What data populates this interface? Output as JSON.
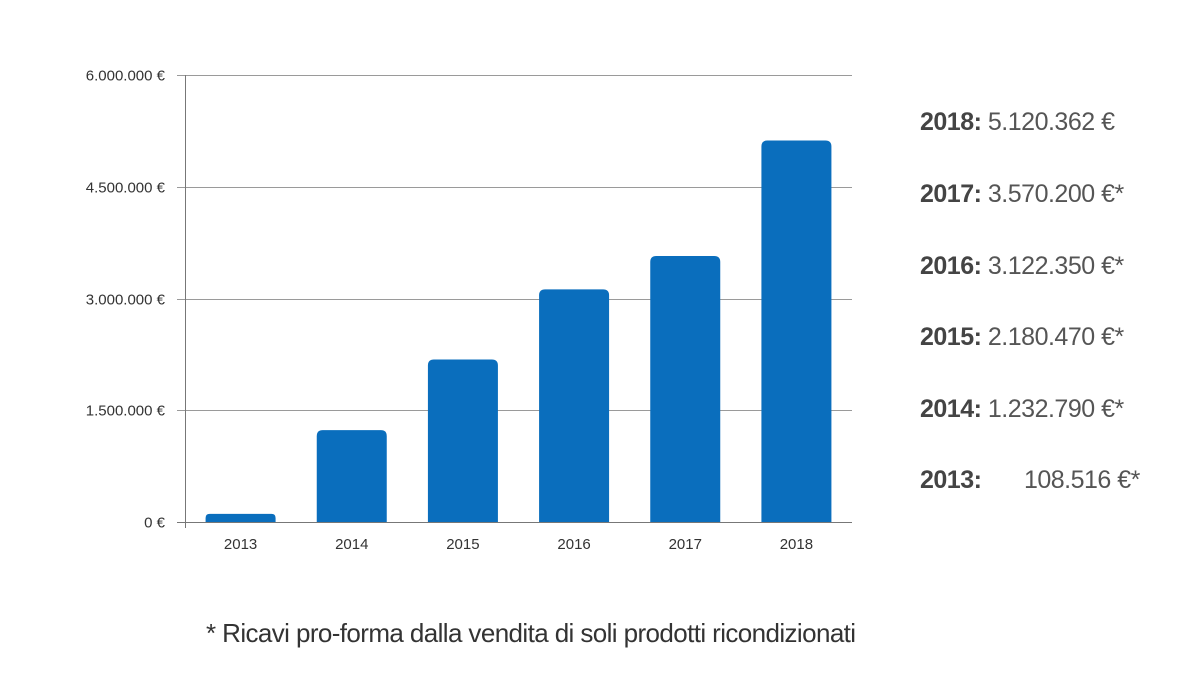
{
  "chart_data": {
    "type": "bar",
    "categories": [
      "2013",
      "2014",
      "2015",
      "2016",
      "2017",
      "2018"
    ],
    "values": [
      108516,
      1232790,
      2180470,
      3122350,
      3570200,
      5120362
    ],
    "ylim": [
      0,
      6000000
    ],
    "y_ticks": [
      0,
      1500000,
      3000000,
      4500000,
      6000000
    ],
    "y_tick_labels": [
      "0 €",
      "1.500.000 €",
      "3.000.000 €",
      "4.500.000 €",
      "6.000.000 €"
    ],
    "grid": true,
    "bar_color": "#0a6ebd",
    "title": "",
    "xlabel": "",
    "ylabel": ""
  },
  "legend": {
    "placement": "right",
    "entries": [
      {
        "year": "2018:",
        "value": "5.120.362 €"
      },
      {
        "year": "2017:",
        "value": "3.570.200 €*"
      },
      {
        "year": "2016:",
        "value": "3.122.350 €*"
      },
      {
        "year": "2015:",
        "value": "2.180.470 €*"
      },
      {
        "year": "2014:",
        "value": "1.232.790 €*"
      },
      {
        "year": "2013:",
        "value": "108.516 €*"
      }
    ]
  },
  "footnote": "* Ricavi pro-forma dalla vendita di soli prodotti ricondizionati",
  "colors": {
    "grid": "#9a9a9a",
    "axis": "#777777",
    "text": "#333333"
  }
}
